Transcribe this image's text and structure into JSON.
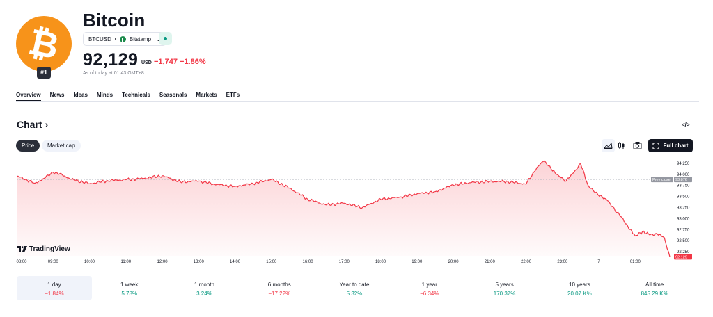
{
  "asset": {
    "name": "Bitcoin",
    "rank": "#1",
    "symbol": "BTCUSD",
    "exchange": "Bitstamp",
    "price": "92,129",
    "currency": "USD",
    "change": "−1,747",
    "change_pct": "−1.86%",
    "as_of": "As of today at 01:43 GMT+8"
  },
  "icons": {
    "logo": "bitcoin-logo-icon",
    "exchange": "bitstamp-icon",
    "status": "market-status-dot-icon",
    "code": "embed-code-icon",
    "area": "area-chart-icon",
    "candle": "candlestick-icon",
    "camera": "camera-icon",
    "fullscreen": "fullscreen-icon"
  },
  "colors": {
    "accent": "#f7931a",
    "negative": "#f23645",
    "positive": "#089981",
    "line": "#f23645"
  },
  "nav": [
    "Overview",
    "News",
    "Ideas",
    "Minds",
    "Technicals",
    "Seasonals",
    "Markets",
    "ETFs"
  ],
  "chart_header": {
    "title": "Chart",
    "title_arrow": "›",
    "code_label": "</>",
    "seg_price": "Price",
    "seg_mcap": "Market cap",
    "full_chart": "Full chart"
  },
  "watermark": "TradingView",
  "chart_data": {
    "type": "area",
    "x_ticks": [
      "08:00",
      "09:00",
      "10:00",
      "11:00",
      "12:00",
      "13:00",
      "14:00",
      "15:00",
      "16:00",
      "17:00",
      "18:00",
      "19:00",
      "20:00",
      "21:00",
      "22:00",
      "23:00",
      "7",
      "01:00"
    ],
    "y_ticks": [
      "94,250",
      "94,000",
      "93,750",
      "93,500",
      "93,250",
      "93,000",
      "92,750",
      "92,500",
      "92,250"
    ],
    "ylim": [
      92150,
      94350
    ],
    "prev_close": 93876,
    "prev_close_label": "Prev close",
    "prev_close_value": "93,876",
    "last_value": "92,129",
    "x_hours": [
      0,
      0.25,
      0.5,
      0.75,
      1.0,
      1.25,
      1.5,
      2.0,
      2.5,
      3.0,
      3.5,
      4.0,
      4.5,
      5.0,
      5.5,
      6.0,
      6.5,
      7.0,
      7.5,
      8.0,
      8.5,
      9.0,
      9.5,
      10.0,
      10.5,
      11.0,
      11.5,
      12.0,
      12.5,
      13.0,
      13.5,
      14.0,
      14.3,
      14.5,
      14.8,
      15.1,
      15.5,
      15.7,
      15.9,
      16.2,
      16.6,
      16.8,
      17.0,
      17.2,
      17.4,
      17.6,
      17.8,
      17.95
    ],
    "values": [
      93950,
      93880,
      93790,
      93900,
      94040,
      93980,
      93880,
      93780,
      93850,
      93870,
      93900,
      93960,
      93820,
      93840,
      93760,
      93720,
      93780,
      93880,
      93680,
      93430,
      93300,
      93340,
      93240,
      93430,
      93470,
      93550,
      93600,
      93750,
      93810,
      93830,
      93830,
      93770,
      94150,
      94300,
      94020,
      93840,
      94230,
      93750,
      93580,
      93430,
      93040,
      92810,
      92600,
      92700,
      92620,
      92650,
      92560,
      92129
    ]
  },
  "periods": [
    {
      "label": "1 day",
      "value": "−1.84%",
      "sign": "neg"
    },
    {
      "label": "1 week",
      "value": "5.78%",
      "sign": "pos"
    },
    {
      "label": "1 month",
      "value": "3.24%",
      "sign": "pos"
    },
    {
      "label": "6 months",
      "value": "−17.22%",
      "sign": "neg"
    },
    {
      "label": "Year to date",
      "value": "5.32%",
      "sign": "pos"
    },
    {
      "label": "1 year",
      "value": "−6.34%",
      "sign": "neg"
    },
    {
      "label": "5 years",
      "value": "170.37%",
      "sign": "pos"
    },
    {
      "label": "10 years",
      "value": "20.07 K%",
      "sign": "pos"
    },
    {
      "label": "All time",
      "value": "845.29 K%",
      "sign": "pos"
    }
  ]
}
